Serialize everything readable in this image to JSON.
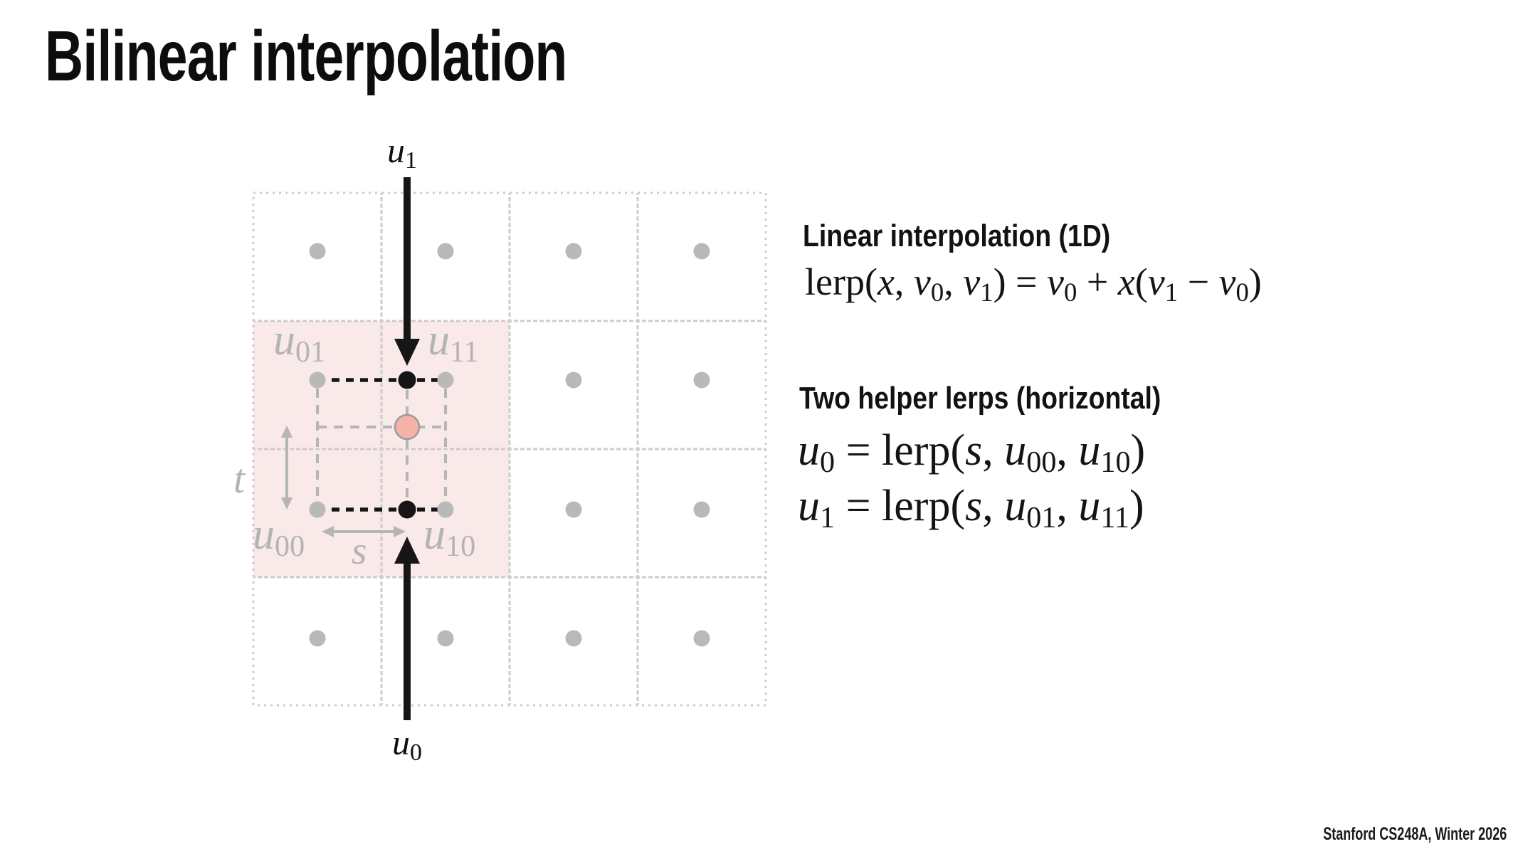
{
  "slide": {
    "title": "Bilinear interpolation",
    "footer": "Stanford CS248A, Winter 2026"
  },
  "right_panel": {
    "heading1": "Linear interpolation (1D)",
    "formula1": [
      [
        "lerp(",
        ""
      ],
      [
        "x",
        "i"
      ],
      [
        ", ",
        ""
      ],
      [
        "v",
        "i"
      ],
      [
        "0",
        "sub"
      ],
      [
        ", ",
        ""
      ],
      [
        "v",
        "i"
      ],
      [
        "1",
        "sub"
      ],
      [
        ") = ",
        ""
      ],
      [
        "v",
        "i"
      ],
      [
        "0",
        "sub"
      ],
      [
        " + ",
        ""
      ],
      [
        "x",
        "i"
      ],
      [
        "(",
        ""
      ],
      [
        "v",
        "i"
      ],
      [
        "1",
        "sub"
      ],
      [
        " − ",
        ""
      ],
      [
        "v",
        "i"
      ],
      [
        "0",
        "sub"
      ],
      [
        ")",
        ""
      ]
    ],
    "heading2": "Two helper lerps (horizontal)",
    "formula2": [
      [
        "u",
        "i"
      ],
      [
        "0",
        "sub"
      ],
      [
        " = ",
        ""
      ],
      [
        "lerp(",
        ""
      ],
      [
        "s",
        "i"
      ],
      [
        ", ",
        ""
      ],
      [
        "u",
        "i"
      ],
      [
        "00",
        "sub"
      ],
      [
        ", ",
        ""
      ],
      [
        "u",
        "i"
      ],
      [
        "10",
        "sub"
      ],
      [
        ")",
        ""
      ]
    ],
    "formula3": [
      [
        "u",
        "i"
      ],
      [
        "1",
        "sub"
      ],
      [
        " = ",
        ""
      ],
      [
        "lerp(",
        ""
      ],
      [
        "s",
        "i"
      ],
      [
        ", ",
        ""
      ],
      [
        "u",
        "i"
      ],
      [
        "01",
        "sub"
      ],
      [
        ", ",
        ""
      ],
      [
        "u",
        "i"
      ],
      [
        "11",
        "sub"
      ],
      [
        ")",
        ""
      ]
    ]
  },
  "diagram": {
    "description": "4x4 texel grid, pink 2x2 filtering footprint, sample point and two horizontal helper lerp points",
    "colors": {
      "grid_line": "#cccccc",
      "highlight_fill": "#f9e9e8",
      "texel_dot": "#b9b9b9",
      "construction": "#b5b5b5",
      "black": "#161616",
      "sample_fill": "#f5b2a6",
      "sample_stroke": "#9b9b9b"
    },
    "labels": {
      "u1": [
        [
          "u",
          "i"
        ],
        [
          "1",
          "sub"
        ]
      ],
      "u0": [
        [
          "u",
          "i"
        ],
        [
          "0",
          "sub"
        ]
      ],
      "u01": [
        [
          "u",
          "i"
        ],
        [
          "01",
          "sub"
        ]
      ],
      "u11": [
        [
          "u",
          "i"
        ],
        [
          "11",
          "sub"
        ]
      ],
      "u00": [
        [
          "u",
          "i"
        ],
        [
          "00",
          "sub"
        ]
      ],
      "u10": [
        [
          "u",
          "i"
        ],
        [
          "10",
          "sub"
        ]
      ],
      "t": [
        [
          "t",
          "i"
        ]
      ],
      "s": [
        [
          "s",
          "i"
        ]
      ]
    }
  }
}
